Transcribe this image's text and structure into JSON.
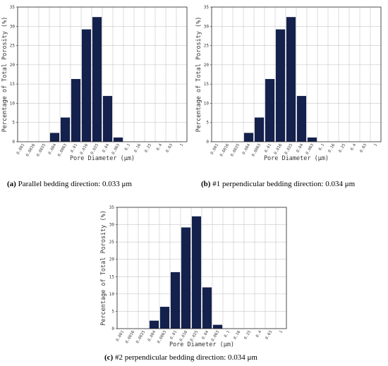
{
  "chart_data": [
    {
      "type": "bar",
      "caption_letter": "(a)",
      "caption_text": "Parallel bedding direction: 0.033 μm",
      "xlabel": "Pore Diameter (μm)",
      "ylabel": "Percentage of Total Porosity (%)",
      "categories": [
        "0.001",
        "0.0016",
        "0.0025",
        "0.004",
        "0.0063",
        "0.01",
        "0.016",
        "0.025",
        "0.04",
        "0.063",
        "0.1",
        "0.16",
        "0.25",
        "0.4",
        "0.63",
        "1"
      ],
      "values": [
        0,
        0,
        0,
        2.3,
        6.3,
        16.3,
        29.2,
        32.4,
        11.9,
        1.1,
        0,
        0,
        0,
        0,
        0,
        0
      ],
      "ylim": [
        0,
        35
      ],
      "yticks": [
        0,
        5,
        10,
        15,
        20,
        25,
        30,
        35
      ],
      "grid": true,
      "bar_color": "#14214d"
    },
    {
      "type": "bar",
      "caption_letter": "(b)",
      "caption_text": "#1 perpendicular bedding direction: 0.034 μm",
      "xlabel": "Pore Diameter (μm)",
      "ylabel": "Percentage of Total Porosity (%)",
      "categories": [
        "0.001",
        "0.0016",
        "0.0025",
        "0.004",
        "0.0063",
        "0.01",
        "0.016",
        "0.025",
        "0.04",
        "0.063",
        "0.1",
        "0.16",
        "0.25",
        "0.4",
        "0.63",
        "1"
      ],
      "values": [
        0,
        0,
        0,
        2.3,
        6.3,
        16.3,
        29.2,
        32.4,
        11.9,
        1.1,
        0,
        0,
        0,
        0,
        0,
        0
      ],
      "ylim": [
        0,
        35
      ],
      "yticks": [
        0,
        5,
        10,
        15,
        20,
        25,
        30,
        35
      ],
      "grid": true,
      "bar_color": "#14214d"
    },
    {
      "type": "bar",
      "caption_letter": "(c)",
      "caption_text": "#2 perpendicular bedding direction: 0.034 μm",
      "xlabel": "Pore Diameter (μm)",
      "ylabel": "Percentage of Total Porosity (%)",
      "categories": [
        "0.001",
        "0.0016",
        "0.0025",
        "0.004",
        "0.0063",
        "0.01",
        "0.016",
        "0.025",
        "0.04",
        "0.063",
        "0.1",
        "0.16",
        "0.25",
        "0.4",
        "0.63",
        "1"
      ],
      "values": [
        0,
        0,
        0,
        2.3,
        6.3,
        16.3,
        29.2,
        32.4,
        11.9,
        1.1,
        0,
        0,
        0,
        0,
        0,
        0
      ],
      "ylim": [
        0,
        35
      ],
      "yticks": [
        0,
        5,
        10,
        15,
        20,
        25,
        30,
        35
      ],
      "grid": true,
      "bar_color": "#14214d"
    }
  ]
}
